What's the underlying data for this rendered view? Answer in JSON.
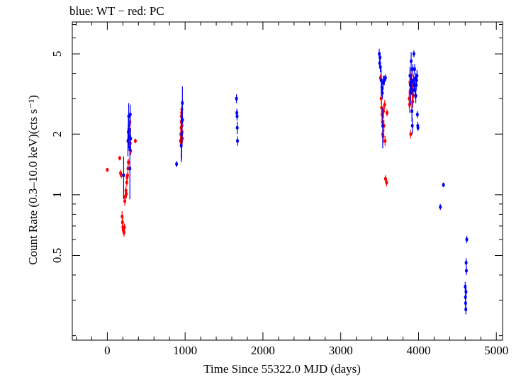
{
  "chart_data": {
    "type": "scatter",
    "title": "blue: WT − red: PC",
    "xlabel": "Time Since 55322.0 MJD (days)",
    "ylabel": "Count Rate (0.3–10.0 keV)(cts s⁻¹)",
    "xlim": [
      -450,
      5080
    ],
    "ylim": [
      0.19,
      7.2
    ],
    "yscale": "log",
    "x_ticks": [
      0,
      1000,
      2000,
      3000,
      4000,
      5000
    ],
    "y_ticks": [
      0.5,
      1,
      2,
      5
    ],
    "y_tick_labels": [
      "0.5",
      "1",
      "2",
      "5"
    ],
    "grid": false,
    "series": [
      {
        "name": "WT",
        "color": "#0000ff",
        "points": [
          [
            210,
            1.25,
            0.3
          ],
          [
            265,
            1.85,
            0.3
          ],
          [
            270,
            2.05,
            0.35
          ],
          [
            275,
            2.45,
            0.4
          ],
          [
            280,
            1.95,
            0.3
          ],
          [
            290,
            1.35,
            0.4
          ],
          [
            295,
            2.5,
            0.3
          ],
          [
            300,
            1.9,
            0.25
          ],
          [
            890,
            1.42,
            0.05
          ],
          [
            950,
            1.75,
            0.3
          ],
          [
            955,
            2.0,
            0.5
          ],
          [
            960,
            2.35,
            0.6
          ],
          [
            965,
            2.85,
            0.6
          ],
          [
            1660,
            3.0,
            0.15
          ],
          [
            1665,
            2.55,
            0.12
          ],
          [
            1668,
            2.45,
            0.12
          ],
          [
            1670,
            2.15,
            0.15
          ],
          [
            1673,
            1.85,
            0.1
          ],
          [
            3495,
            5.0,
            0.3
          ],
          [
            3500,
            4.5,
            0.25
          ],
          [
            3505,
            4.8,
            0.3
          ],
          [
            3510,
            4.3,
            0.25
          ],
          [
            3520,
            3.7,
            0.5
          ],
          [
            3530,
            3.4,
            0.3
          ],
          [
            3535,
            3.2,
            0.2
          ],
          [
            3540,
            2.2,
            0.5
          ],
          [
            3545,
            3.6,
            0.3
          ],
          [
            3560,
            3.7,
            0.2
          ],
          [
            3575,
            3.8,
            0.15
          ],
          [
            3890,
            3.9,
            0.4
          ],
          [
            3895,
            3.5,
            0.3
          ],
          [
            3900,
            3.2,
            0.4
          ],
          [
            3905,
            4.6,
            0.5
          ],
          [
            3910,
            3.6,
            0.3
          ],
          [
            3915,
            2.6,
            0.3
          ],
          [
            3920,
            2.2,
            0.2
          ],
          [
            3925,
            4.2,
            0.25
          ],
          [
            3930,
            3.3,
            0.2
          ],
          [
            3935,
            3.7,
            0.25
          ],
          [
            3940,
            5.0,
            0.2
          ],
          [
            3945,
            3.5,
            0.2
          ],
          [
            3950,
            4.2,
            0.25
          ],
          [
            3955,
            3.3,
            0.3
          ],
          [
            3960,
            3.8,
            0.2
          ],
          [
            3965,
            3.1,
            0.25
          ],
          [
            3970,
            3.5,
            0.2
          ],
          [
            3975,
            3.7,
            0.2
          ],
          [
            3980,
            3.9,
            0.25
          ],
          [
            3985,
            2.5,
            0.1
          ],
          [
            3990,
            2.2,
            0.1
          ],
          [
            3993,
            2.15,
            0.08
          ],
          [
            4280,
            0.87,
            0.03
          ],
          [
            4320,
            1.12,
            0.03
          ],
          [
            4600,
            0.35,
            0.02
          ],
          [
            4603,
            0.31,
            0.02
          ],
          [
            4605,
            0.29,
            0.02
          ],
          [
            4608,
            0.27,
            0.015
          ],
          [
            4610,
            0.33,
            0.02
          ],
          [
            4612,
            0.46,
            0.025
          ],
          [
            4615,
            0.42,
            0.02
          ],
          [
            4620,
            0.6,
            0.025
          ]
        ]
      },
      {
        "name": "PC",
        "color": "#ff0000",
        "points": [
          [
            0,
            1.33,
            0.03
          ],
          [
            160,
            1.52,
            0.04
          ],
          [
            170,
            1.28,
            0.05
          ],
          [
            180,
            1.25,
            0.04
          ],
          [
            190,
            0.78,
            0.05
          ],
          [
            195,
            0.73,
            0.04
          ],
          [
            200,
            0.69,
            0.04
          ],
          [
            205,
            0.67,
            0.03
          ],
          [
            210,
            0.66,
            0.03
          ],
          [
            215,
            0.65,
            0.03
          ],
          [
            220,
            0.69,
            0.03
          ],
          [
            225,
            0.93,
            0.05
          ],
          [
            230,
            0.98,
            0.05
          ],
          [
            240,
            1.05,
            0.05
          ],
          [
            245,
            1.01,
            0.05
          ],
          [
            250,
            1.15,
            0.05
          ],
          [
            255,
            1.22,
            0.05
          ],
          [
            260,
            1.25,
            0.05
          ],
          [
            265,
            1.35,
            0.05
          ],
          [
            270,
            1.45,
            0.06
          ],
          [
            275,
            1.9,
            0.1
          ],
          [
            280,
            2.2,
            0.1
          ],
          [
            285,
            2.1,
            0.1
          ],
          [
            290,
            2.3,
            0.1
          ],
          [
            295,
            1.8,
            0.1
          ],
          [
            300,
            1.65,
            0.08
          ],
          [
            360,
            1.85,
            0.05
          ],
          [
            940,
            1.85,
            0.1
          ],
          [
            945,
            2.0,
            0.1
          ],
          [
            948,
            2.15,
            0.1
          ],
          [
            950,
            2.3,
            0.12
          ],
          [
            952,
            2.45,
            0.12
          ],
          [
            955,
            2.55,
            0.12
          ],
          [
            958,
            2.65,
            0.12
          ],
          [
            960,
            2.2,
            0.1
          ],
          [
            962,
            2.05,
            0.1
          ],
          [
            965,
            1.9,
            0.1
          ],
          [
            968,
            2.35,
            0.1
          ],
          [
            3510,
            3.8,
            0.15
          ],
          [
            3520,
            3.0,
            0.2
          ],
          [
            3525,
            2.7,
            0.2
          ],
          [
            3530,
            2.5,
            0.2
          ],
          [
            3535,
            2.3,
            0.15
          ],
          [
            3540,
            2.0,
            0.15
          ],
          [
            3545,
            1.95,
            0.15
          ],
          [
            3550,
            2.6,
            0.2
          ],
          [
            3555,
            2.2,
            0.15
          ],
          [
            3560,
            3.7,
            0.2
          ],
          [
            3565,
            2.8,
            0.15
          ],
          [
            3570,
            1.85,
            0.1
          ],
          [
            3575,
            1.2,
            0.05
          ],
          [
            3590,
            1.15,
            0.05
          ],
          [
            3595,
            2.55,
            0.1
          ],
          [
            3880,
            3.0,
            0.3
          ],
          [
            3885,
            2.8,
            0.25
          ],
          [
            3890,
            3.6,
            0.3
          ],
          [
            3895,
            3.3,
            0.3
          ],
          [
            3900,
            2.0,
            0.1
          ],
          [
            3905,
            3.9,
            0.3
          ],
          [
            3910,
            3.7,
            0.3
          ],
          [
            3915,
            3.5,
            0.25
          ],
          [
            3920,
            3.2,
            0.25
          ],
          [
            3925,
            2.9,
            0.2
          ],
          [
            3930,
            3.1,
            0.2
          ]
        ]
      }
    ]
  }
}
